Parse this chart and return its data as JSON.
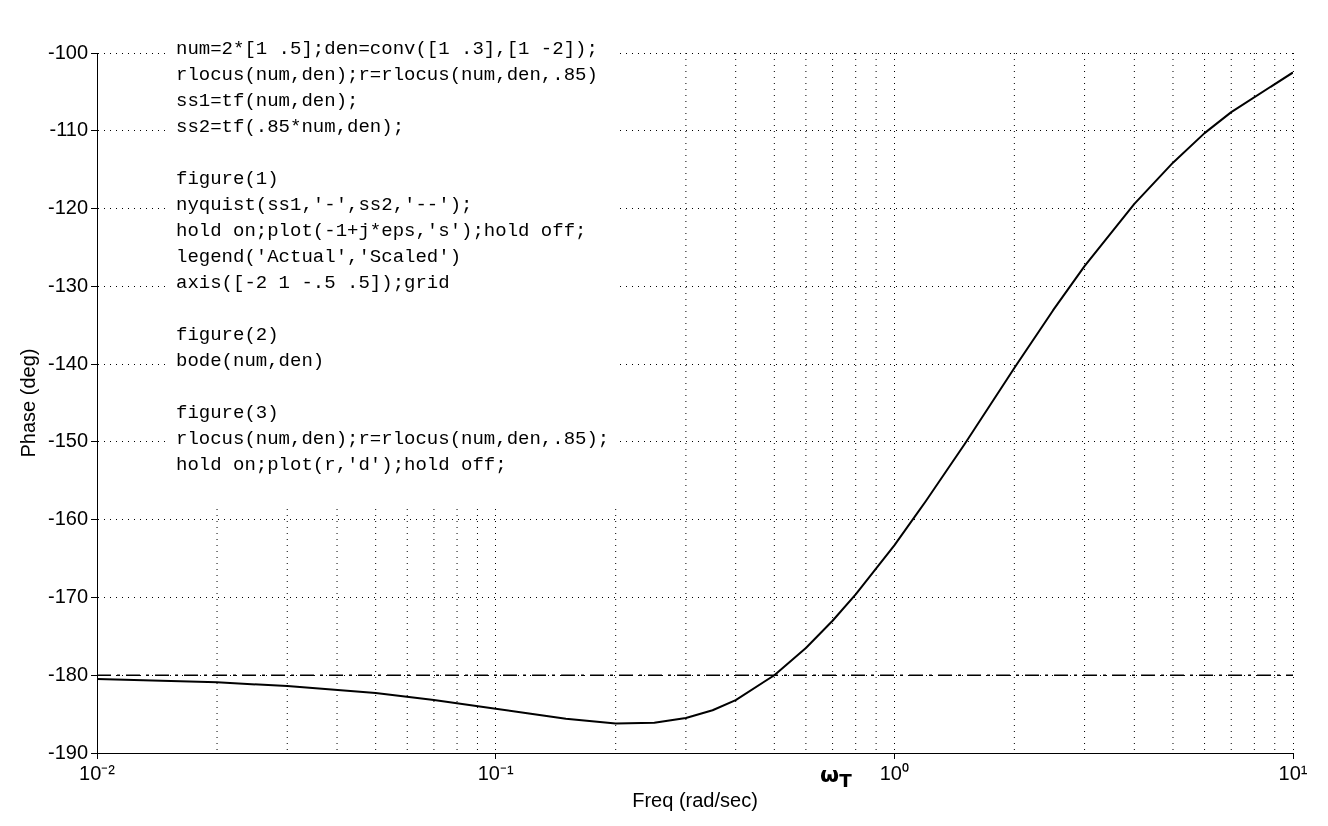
{
  "chart_data": {
    "type": "line",
    "xlabel": "Freq (rad/sec)",
    "ylabel": "Phase (deg)",
    "log": "x",
    "x": [
      0.01,
      0.02,
      0.03,
      0.05,
      0.07,
      0.1,
      0.12,
      0.15,
      0.2,
      0.25,
      0.3,
      0.35,
      0.4,
      0.5,
      0.6,
      0.7,
      0.8,
      1,
      1.2,
      1.5,
      2,
      2.5,
      3,
      4,
      5,
      6,
      7,
      10
    ],
    "series": [
      {
        "color": "#000000",
        "values": [
          -180.5,
          -180.9,
          -181.4,
          -182.3,
          -183.2,
          -184.3,
          -184.9,
          -185.6,
          -186.2,
          -186.1,
          -185.5,
          -184.5,
          -183.2,
          -180,
          -176.5,
          -173,
          -169.6,
          -163.3,
          -157.6,
          -150.3,
          -140.5,
          -133.1,
          -127.4,
          -119.4,
          -114.1,
          -110.3,
          -107.6,
          -102.5
        ]
      }
    ],
    "xlim": [
      0.01,
      10
    ],
    "xticks": [
      {
        "value": 0.01,
        "label": "10⁻²"
      },
      {
        "value": 0.1,
        "label": "10⁻¹"
      },
      {
        "value": 1,
        "label": "10⁰"
      },
      {
        "value": 10,
        "label": "10¹"
      }
    ],
    "ylim": [
      -190,
      -100
    ],
    "yticks": [
      -190,
      -180,
      -170,
      -160,
      -150,
      -140,
      -130,
      -120,
      -110,
      -100
    ],
    "grid": true,
    "legend": false,
    "marker": "none",
    "line_style": "solid",
    "ref_lines": [
      {
        "axis": "y",
        "value": -180,
        "color": "#000000",
        "line_style": "dashed"
      }
    ],
    "annotations": [
      "num=2*[1 .5];den=conv([1 .3],[1 -2]);\nrlocus(num,den);r=rlocus(num,den,.85)\nss1=tf(num,den);\nss2=tf(.85*num,den);",
      "figure(1)\nnyquist(ss1,'-',ss2,'--');\nhold on;plot(-1+j*eps,'s');hold off;\nlegend('Actual','Scaled')\naxis([-2 1 -.5 .5]);grid",
      "figure(2)\nbode(num,den)",
      "figure(3)\nrlocus(num,den);r=rlocus(num,den,.85);\nhold on;plot(r,'d');hold off;",
      "ω$_{T}$"
    ]
  }
}
